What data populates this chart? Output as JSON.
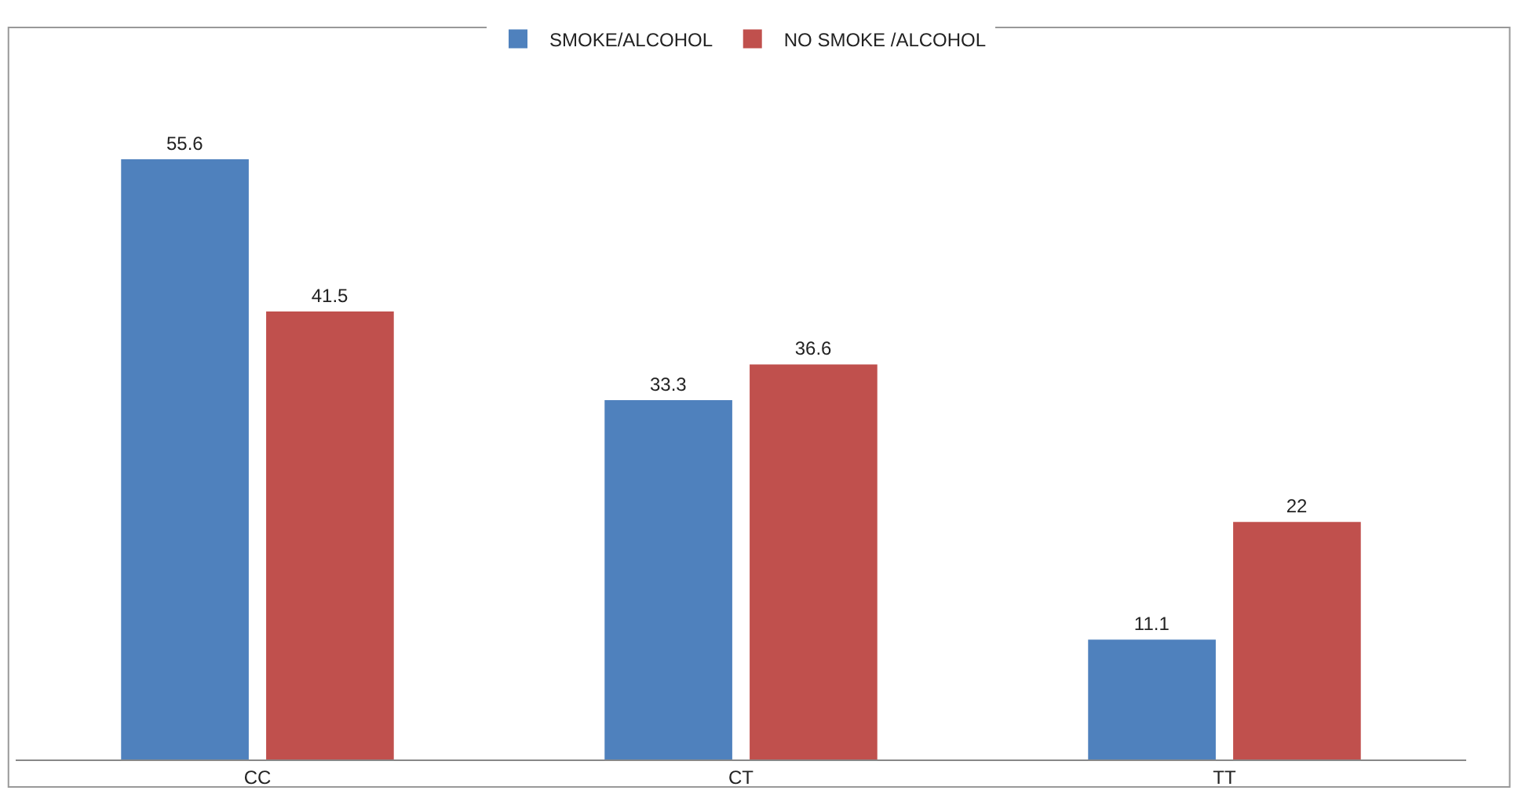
{
  "chart_data": {
    "type": "bar",
    "categories": [
      "CC",
      "CT",
      "TT"
    ],
    "series": [
      {
        "name": "SMOKE/ALCOHOL",
        "color": "#4f81bd",
        "values": [
          55.6,
          33.3,
          11.1
        ]
      },
      {
        "name": "NO SMOKE /ALCOHOL",
        "color": "#c0504d",
        "values": [
          41.5,
          36.6,
          22
        ]
      }
    ],
    "data_labels": true,
    "legend": "top",
    "grid": false
  }
}
